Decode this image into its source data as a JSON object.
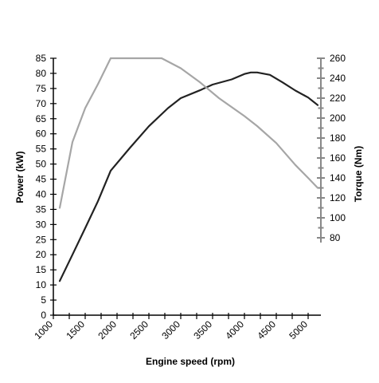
{
  "chart_data": {
    "type": "line",
    "title": "",
    "xlabel": "Engine speed (rpm)",
    "ylabel_left": "Power (kW)",
    "ylabel_right": "Torque (Nm)",
    "xlim": [
      1000,
      5200
    ],
    "ylim_left": [
      0,
      85
    ],
    "ylim_right": [
      80,
      260
    ],
    "x_ticks": [
      "1000",
      "1500",
      "2000",
      "2500",
      "3000",
      "3500",
      "4000",
      "4500",
      "5000"
    ],
    "y_left_ticks": [
      "0",
      "5",
      "10",
      "15",
      "20",
      "25",
      "30",
      "35",
      "40",
      "45",
      "50",
      "55",
      "60",
      "65",
      "70",
      "75",
      "80",
      "85"
    ],
    "y_right_ticks": [
      "80",
      "100",
      "120",
      "140",
      "160",
      "180",
      "200",
      "220",
      "240",
      "260"
    ],
    "grid": false,
    "legend": "none",
    "series": [
      {
        "axis": "left",
        "color": "#222222",
        "x": [
          1100,
          1300,
          1500,
          1700,
          1900,
          2200,
          2500,
          2800,
          3000,
          3300,
          3500,
          3800,
          4000,
          4100,
          4200,
          4400,
          4600,
          4800,
          5000,
          5150
        ],
        "y": [
          11.3,
          20,
          28.8,
          37.7,
          47.8,
          55.3,
          62.5,
          68.5,
          71.8,
          74.4,
          76.3,
          78,
          79.8,
          80.3,
          80.3,
          79.5,
          77,
          74.3,
          72,
          69.5
        ]
      },
      {
        "axis": "right",
        "color": "#a6a6a6",
        "x": [
          1100,
          1300,
          1500,
          1700,
          1900,
          2200,
          2500,
          2700,
          3000,
          3300,
          3600,
          4000,
          4200,
          4500,
          4800,
          5000,
          5150
        ],
        "y": [
          110,
          176,
          210,
          234,
          260,
          260,
          260,
          260,
          250,
          236,
          220,
          202,
          192,
          175,
          153,
          140,
          130
        ]
      }
    ]
  }
}
